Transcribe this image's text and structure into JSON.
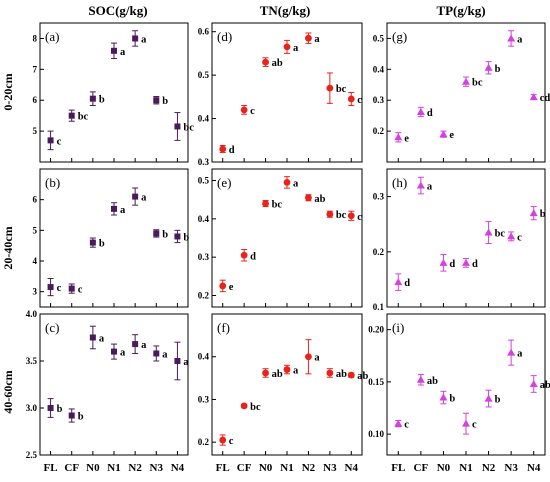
{
  "figure": {
    "column_titles": [
      "SOC(g/kg)",
      "TN(g/kg)",
      "TP(g/kg)"
    ],
    "row_labels": [
      "0-20cm",
      "20-40cm",
      "40-60cm"
    ],
    "categories": [
      "FL",
      "CF",
      "N0",
      "N1",
      "N2",
      "N3",
      "N4"
    ]
  },
  "chart_data": [
    {
      "id": "a",
      "type": "scatter",
      "panel_label": "(a)",
      "variable": "SOC(g/kg)",
      "depth": "0-20cm",
      "marker": "square",
      "color": "#4a1a5c",
      "ylim": [
        4.0,
        8.5
      ],
      "yticks": [
        "5",
        "6",
        "7",
        "8"
      ],
      "ytick_values": [
        5,
        6,
        7,
        8
      ],
      "values": [
        4.7,
        5.5,
        6.05,
        7.6,
        8.0,
        6.0,
        5.15
      ],
      "errors": [
        0.3,
        0.18,
        0.22,
        0.25,
        0.25,
        0.12,
        0.45
      ],
      "labels": [
        "c",
        "bc",
        "b",
        "a",
        "a",
        "b",
        "bc"
      ]
    },
    {
      "id": "b",
      "type": "scatter",
      "panel_label": "(b)",
      "variable": "SOC(g/kg)",
      "depth": "20-40cm",
      "marker": "square",
      "color": "#4a1a5c",
      "ylim": [
        2.5,
        7.0
      ],
      "yticks": [
        "3",
        "4",
        "5",
        "6"
      ],
      "ytick_values": [
        3,
        4,
        5,
        6
      ],
      "values": [
        3.15,
        3.1,
        4.6,
        5.7,
        6.1,
        4.9,
        4.8
      ],
      "errors": [
        0.28,
        0.15,
        0.15,
        0.2,
        0.28,
        0.12,
        0.2
      ],
      "labels": [
        "c",
        "c",
        "b",
        "a",
        "a",
        "b",
        "b"
      ]
    },
    {
      "id": "c",
      "type": "scatter",
      "panel_label": "(c)",
      "variable": "SOC(g/kg)",
      "depth": "40-60cm",
      "marker": "square",
      "color": "#4a1a5c",
      "ylim": [
        2.5,
        4.0
      ],
      "yticks": [
        "2.5",
        "3.0",
        "3.5",
        "4.0"
      ],
      "ytick_values": [
        2.5,
        3.0,
        3.5,
        4.0
      ],
      "values": [
        3.0,
        2.92,
        3.75,
        3.6,
        3.68,
        3.58,
        3.5
      ],
      "errors": [
        0.1,
        0.07,
        0.12,
        0.08,
        0.1,
        0.08,
        0.2
      ],
      "labels": [
        "b",
        "b",
        "a",
        "a",
        "a",
        "a",
        "a"
      ]
    },
    {
      "id": "d",
      "type": "scatter",
      "panel_label": "(d)",
      "variable": "TN(g/kg)",
      "depth": "0-20cm",
      "marker": "circle",
      "color": "#e8231b",
      "ylim": [
        0.3,
        0.62
      ],
      "yticks": [
        "0.3",
        "0.4",
        "0.5",
        "0.6"
      ],
      "ytick_values": [
        0.3,
        0.4,
        0.5,
        0.6
      ],
      "values": [
        0.33,
        0.42,
        0.53,
        0.565,
        0.585,
        0.47,
        0.445
      ],
      "errors": [
        0.008,
        0.01,
        0.01,
        0.015,
        0.012,
        0.035,
        0.015
      ],
      "labels": [
        "d",
        "c",
        "ab",
        "a",
        "a",
        "bc",
        "c"
      ]
    },
    {
      "id": "e",
      "type": "scatter",
      "panel_label": "(e)",
      "variable": "TN(g/kg)",
      "depth": "20-40cm",
      "marker": "circle",
      "color": "#e8231b",
      "ylim": [
        0.17,
        0.53
      ],
      "yticks": [
        "0.2",
        "0.3",
        "0.4",
        "0.5"
      ],
      "ytick_values": [
        0.2,
        0.3,
        0.4,
        0.5
      ],
      "values": [
        0.225,
        0.305,
        0.44,
        0.495,
        0.455,
        0.412,
        0.408
      ],
      "errors": [
        0.015,
        0.015,
        0.008,
        0.015,
        0.008,
        0.008,
        0.012
      ],
      "labels": [
        "e",
        "d",
        "bc",
        "a",
        "ab",
        "bc",
        "c"
      ]
    },
    {
      "id": "f",
      "type": "scatter",
      "panel_label": "(f)",
      "variable": "TN(g/kg)",
      "depth": "40-60cm",
      "marker": "circle",
      "color": "#e8231b",
      "ylim": [
        0.17,
        0.5
      ],
      "yticks": [
        "0.2",
        "0.3",
        "0.4"
      ],
      "ytick_values": [
        0.2,
        0.3,
        0.4
      ],
      "values": [
        0.205,
        0.285,
        0.362,
        0.37,
        0.4,
        0.362,
        0.357
      ],
      "errors": [
        0.012,
        0.004,
        0.01,
        0.01,
        0.04,
        0.01,
        0.005
      ],
      "labels": [
        "c",
        "bc",
        "ab",
        "a",
        "a",
        "ab",
        "ab"
      ]
    },
    {
      "id": "g",
      "type": "scatter",
      "panel_label": "(g)",
      "variable": "TP(g/kg)",
      "depth": "0-20cm",
      "marker": "triangle",
      "color": "#d63fe0",
      "ylim": [
        0.1,
        0.55
      ],
      "yticks": [
        "0.2",
        "0.3",
        "0.4",
        "0.5"
      ],
      "ytick_values": [
        0.2,
        0.3,
        0.4,
        0.5
      ],
      "values": [
        0.18,
        0.262,
        0.19,
        0.36,
        0.405,
        0.5,
        0.31
      ],
      "errors": [
        0.015,
        0.015,
        0.01,
        0.015,
        0.02,
        0.025,
        0.008
      ],
      "labels": [
        "e",
        "d",
        "e",
        "bc",
        "b",
        "a",
        "cd"
      ]
    },
    {
      "id": "h",
      "type": "scatter",
      "panel_label": "(h)",
      "variable": "TP(g/kg)",
      "depth": "20-40cm",
      "marker": "triangle",
      "color": "#d63fe0",
      "ylim": [
        0.1,
        0.35
      ],
      "yticks": [
        "0.1",
        "0.2",
        "0.3"
      ],
      "ytick_values": [
        0.1,
        0.2,
        0.3
      ],
      "values": [
        0.145,
        0.32,
        0.18,
        0.18,
        0.235,
        0.228,
        0.27
      ],
      "errors": [
        0.015,
        0.015,
        0.015,
        0.008,
        0.02,
        0.008,
        0.012
      ],
      "labels": [
        "d",
        "a",
        "d",
        "d",
        "bc",
        "c",
        "b"
      ]
    },
    {
      "id": "i",
      "type": "scatter",
      "panel_label": "(i)",
      "variable": "TP(g/kg)",
      "depth": "40-60cm",
      "marker": "triangle",
      "color": "#d63fe0",
      "ylim": [
        0.08,
        0.215
      ],
      "yticks": [
        "0.10",
        "0.15",
        "0.20"
      ],
      "ytick_values": [
        0.1,
        0.15,
        0.2
      ],
      "values": [
        0.11,
        0.152,
        0.135,
        0.11,
        0.134,
        0.178,
        0.148
      ],
      "errors": [
        0.003,
        0.005,
        0.006,
        0.01,
        0.008,
        0.012,
        0.008
      ],
      "labels": [
        "c",
        "ab",
        "b",
        "c",
        "b",
        "a",
        "ab"
      ]
    }
  ]
}
